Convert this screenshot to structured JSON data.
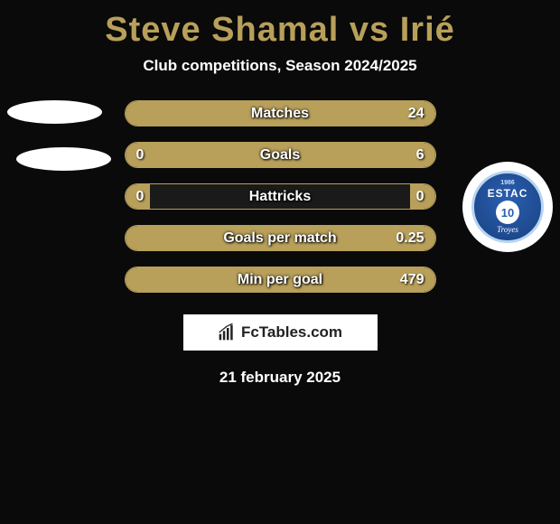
{
  "title": "Steve Shamal vs Irié",
  "subtitle": "Club competitions, Season 2024/2025",
  "date": "21 february 2025",
  "brand": "FcTables.com",
  "crest": {
    "year": "1986",
    "name": "ESTAC",
    "number": "10",
    "city": "Troyes"
  },
  "bar_style": {
    "track_bg": "#1a1a1a",
    "fill_color": "#b8a05a",
    "border_color": "#b8a05a",
    "text_color": "#ffffff"
  },
  "bars": [
    {
      "label": "Matches",
      "left": "",
      "right": "24",
      "fillL": 50,
      "fillR": 50,
      "showL": false,
      "showR": true
    },
    {
      "label": "Goals",
      "left": "0",
      "right": "6",
      "fillL": 8,
      "fillR": 92,
      "showL": true,
      "showR": true
    },
    {
      "label": "Hattricks",
      "left": "0",
      "right": "0",
      "fillL": 8,
      "fillR": 8,
      "showL": true,
      "showR": true
    },
    {
      "label": "Goals per match",
      "left": "",
      "right": "0.25",
      "fillL": 50,
      "fillR": 50,
      "showL": false,
      "showR": true
    },
    {
      "label": "Min per goal",
      "left": "",
      "right": "479",
      "fillL": 50,
      "fillR": 50,
      "showL": false,
      "showR": true
    }
  ]
}
